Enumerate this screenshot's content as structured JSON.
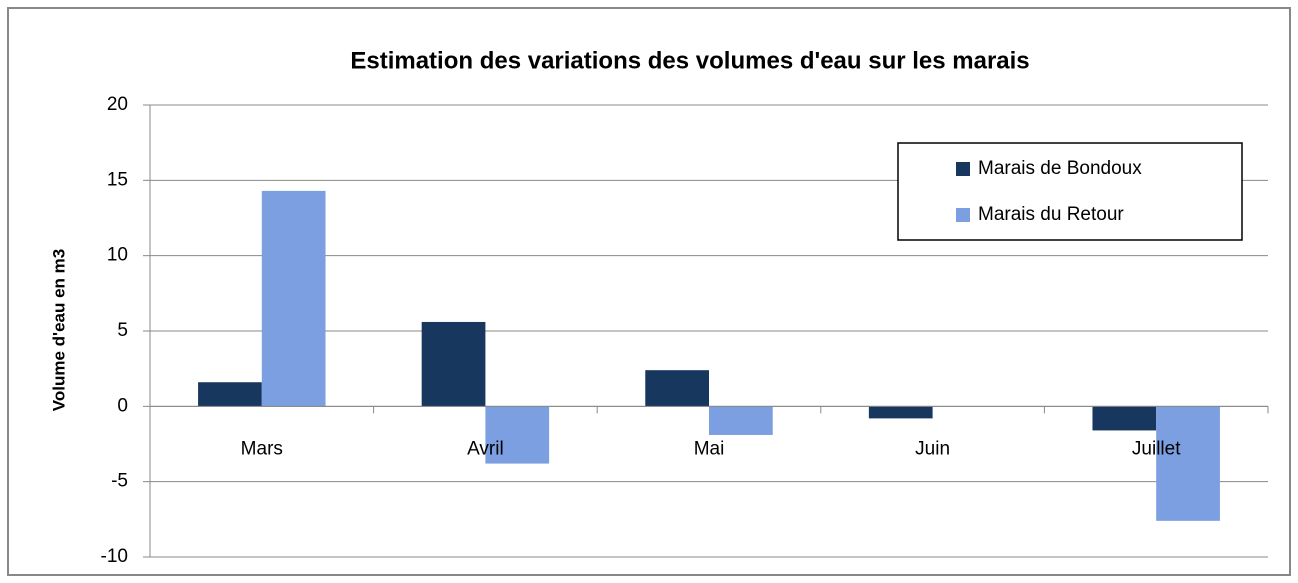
{
  "chart_data": {
    "type": "bar",
    "title": "Estimation des variations des volumes d'eau sur les marais",
    "y_label": "Volume d'eau en m3",
    "categories": [
      "Mars",
      "Avril",
      "Mai",
      "Juin",
      "Juillet"
    ],
    "series": [
      {
        "name": "Marais de Bondoux",
        "color": "#17375e",
        "values": [
          1.6,
          5.6,
          2.4,
          -0.8,
          -1.6
        ]
      },
      {
        "name": "Marais du Retour",
        "color": "#7b9fe0",
        "values": [
          14.3,
          -3.8,
          -1.9,
          0,
          -7.6
        ]
      }
    ],
    "ylim": [
      -10,
      20
    ],
    "yticks": [
      -10,
      -5,
      0,
      5,
      10,
      15,
      20
    ],
    "grid": true,
    "legend": "upper right"
  }
}
